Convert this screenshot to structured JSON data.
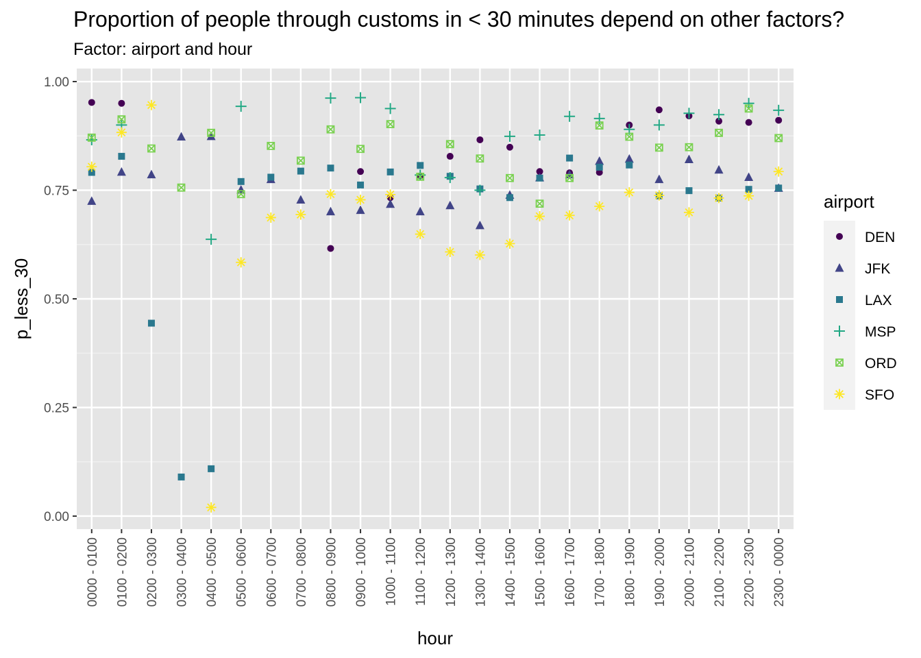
{
  "title": "Proportion of people through customs in < 30 minutes depend on other factors?",
  "subtitle": "Factor: airport and hour",
  "chart_data": {
    "type": "scatter",
    "xlabel": "hour",
    "ylabel": "p_less_30",
    "ylim": [
      -0.03,
      1.03
    ],
    "y_ticks": [
      "0.00",
      "0.25",
      "0.50",
      "0.75",
      "1.00"
    ],
    "y_tick_values": [
      0,
      0.25,
      0.5,
      0.75,
      1.0
    ],
    "grid": true,
    "legend_title": "airport",
    "legend_position": "right",
    "categories": [
      "0000 - 0100",
      "0100 - 0200",
      "0200 - 0300",
      "0300 - 0400",
      "0400 - 0500",
      "0500 - 0600",
      "0600 - 0700",
      "0700 - 0800",
      "0800 - 0900",
      "0900 - 1000",
      "1000 - 1100",
      "1100 - 1200",
      "1200 - 1300",
      "1300 - 1400",
      "1400 - 1500",
      "1500 - 1600",
      "1600 - 1700",
      "1700 - 1800",
      "1800 - 1900",
      "1900 - 2000",
      "2000 - 2100",
      "2100 - 2200",
      "2200 - 2300",
      "2300 - 0000"
    ],
    "series": [
      {
        "name": "DEN",
        "shape": "circle",
        "color": "#440154",
        "values": [
          0.952,
          0.95,
          null,
          null,
          null,
          null,
          null,
          null,
          0.616,
          0.793,
          0.733,
          0.783,
          0.828,
          0.866,
          0.849,
          0.793,
          0.79,
          0.791,
          0.9,
          0.935,
          0.921,
          0.909,
          0.906,
          0.911
        ]
      },
      {
        "name": "JFK",
        "shape": "triangle",
        "color": "#414487",
        "values": [
          0.725,
          0.792,
          0.786,
          0.873,
          0.874,
          0.751,
          0.775,
          0.728,
          0.701,
          0.704,
          0.718,
          0.701,
          0.715,
          0.669,
          0.739,
          0.779,
          0.786,
          0.817,
          0.822,
          0.775,
          0.821,
          0.797,
          0.78,
          0.755
        ]
      },
      {
        "name": "LAX",
        "shape": "square",
        "color": "#2A788E",
        "values": [
          0.791,
          0.828,
          0.444,
          0.09,
          0.109,
          0.77,
          0.78,
          0.794,
          0.801,
          0.762,
          0.792,
          0.807,
          0.782,
          0.753,
          0.733,
          0.778,
          0.824,
          0.803,
          0.808,
          0.737,
          0.749,
          0.732,
          0.752,
          0.755
        ]
      },
      {
        "name": "MSP",
        "shape": "plus",
        "color": "#22A884",
        "values": [
          0.866,
          0.9,
          null,
          null,
          0.637,
          0.943,
          null,
          null,
          0.962,
          0.963,
          0.938,
          0.785,
          0.779,
          0.75,
          0.874,
          0.877,
          0.92,
          0.915,
          0.89,
          0.9,
          0.927,
          0.924,
          0.95,
          0.934
        ]
      },
      {
        "name": "ORD",
        "shape": "squarecross",
        "color": "#7AD151",
        "values": [
          0.871,
          0.913,
          0.846,
          0.756,
          0.882,
          0.741,
          0.852,
          0.818,
          0.89,
          0.845,
          0.902,
          0.781,
          0.856,
          0.823,
          0.778,
          0.719,
          0.778,
          0.899,
          0.873,
          0.848,
          0.849,
          0.882,
          0.938,
          0.87
        ]
      },
      {
        "name": "SFO",
        "shape": "asterisk",
        "color": "#FDE725",
        "values": [
          0.804,
          0.883,
          0.946,
          null,
          0.02,
          0.584,
          0.687,
          0.694,
          0.741,
          0.728,
          0.74,
          0.649,
          0.608,
          0.601,
          0.627,
          0.69,
          0.692,
          0.713,
          0.745,
          0.738,
          0.699,
          0.732,
          0.737,
          0.793
        ]
      }
    ]
  }
}
